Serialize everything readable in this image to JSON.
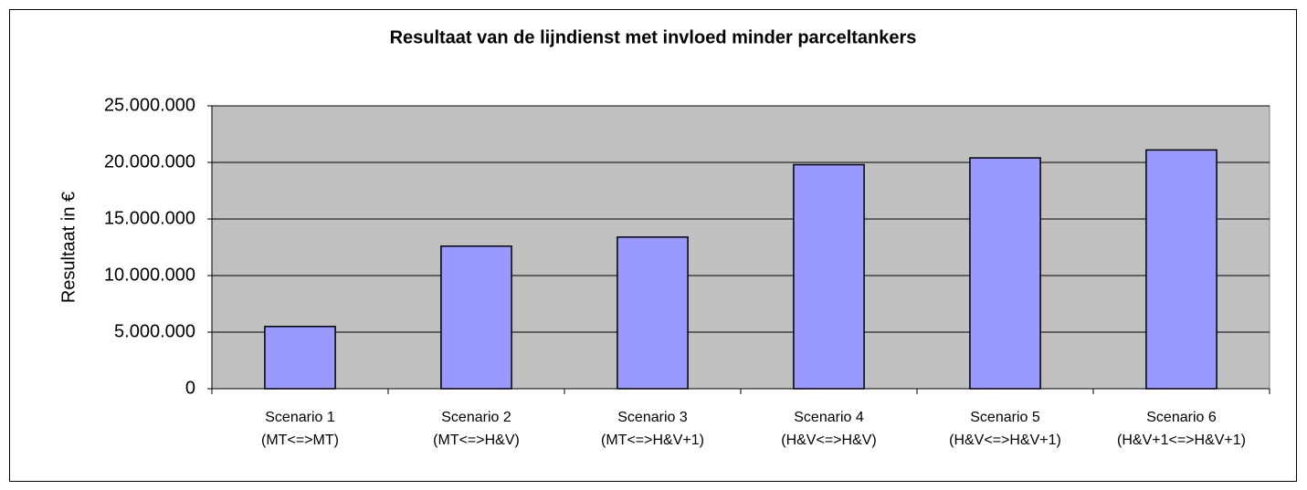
{
  "chart_data": {
    "type": "bar",
    "title": "Resultaat van de lijndienst met invloed minder parceltankers",
    "y_label": "Resultaat in €",
    "categories": [
      [
        "Scenario 1",
        "(MT<=>MT)"
      ],
      [
        "Scenario 2",
        "(MT<=>H&V)"
      ],
      [
        "Scenario 3",
        "(MT<=>H&V+1)"
      ],
      [
        "Scenario 4",
        "(H&V<=>H&V)"
      ],
      [
        "Scenario 5",
        "(H&V<=>H&V+1)"
      ],
      [
        "Scenario 6",
        "(H&V+1<=>H&V+1)"
      ]
    ],
    "values": [
      5500000,
      12600000,
      13400000,
      19800000,
      20400000,
      21100000
    ],
    "color": "#9999ff",
    "ylim": [
      0,
      25000000
    ],
    "yticks": [
      0,
      {
        "value": 5000000,
        "label": "5.000.000"
      },
      {
        "value": 10000000,
        "label": "10.000.000"
      },
      {
        "value": 15000000,
        "label": "15.000.000"
      },
      {
        "value": 20000000,
        "label": "20.000.000"
      },
      {
        "value": 25000000,
        "label": "25.000.000"
      }
    ],
    "grid": true
  }
}
